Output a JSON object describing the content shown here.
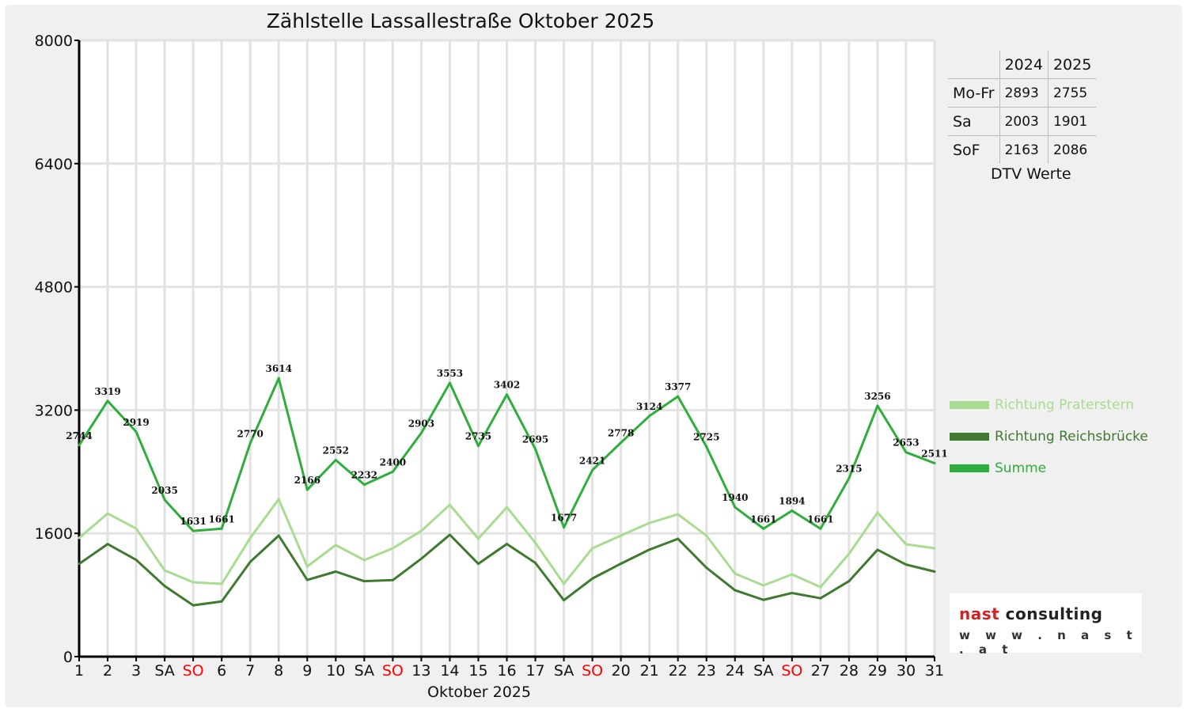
{
  "chart_data": {
    "type": "line",
    "title": "Zählstelle Lassallestraße Oktober 2025",
    "xlabel": "Oktober 2025",
    "ylabel": "",
    "ylim": [
      0,
      8000
    ],
    "yticks": [
      "0",
      "1600",
      "3200",
      "4800",
      "6400",
      "8000"
    ],
    "ytick_values": [
      0,
      1600,
      3200,
      4800,
      6400,
      8000
    ],
    "grid": true,
    "legend_placement": "right",
    "categories": [
      "1",
      "2",
      "3",
      "SA",
      "SO",
      "6",
      "7",
      "8",
      "9",
      "10",
      "SA",
      "SO",
      "13",
      "14",
      "15",
      "16",
      "17",
      "SA",
      "SO",
      "20",
      "21",
      "22",
      "23",
      "24",
      "SA",
      "SO",
      "27",
      "28",
      "29",
      "30",
      "31"
    ],
    "series": [
      {
        "name": "Richtung Praterstern",
        "color": "#a8dc90",
        "values": [
          1540,
          1858,
          1663,
          1119,
          965,
          945,
          1540,
          2043,
          1170,
          1448,
          1253,
          1407,
          1632,
          1971,
          1530,
          1940,
          1478,
          945,
          1407,
          1571,
          1735,
          1848,
          1571,
          1078,
          924,
          1068,
          903,
          1335,
          1869,
          1458,
          1407
        ]
      },
      {
        "name": "Richtung Reichsbrücke",
        "color": "#3f7a30",
        "values": [
          1204,
          1461,
          1256,
          916,
          666,
          716,
          1230,
          1571,
          996,
          1104,
          979,
          993,
          1271,
          1582,
          1205,
          1462,
          1217,
          732,
          1014,
          1207,
          1389,
          1529,
          1154,
          862,
          737,
          826,
          758,
          980,
          1387,
          1195,
          1104
        ]
      },
      {
        "name": "Summe",
        "color": "#2eae3a",
        "values": [
          2744,
          3319,
          2919,
          2035,
          1631,
          1661,
          2770,
          3614,
          2166,
          2552,
          2232,
          2400,
          2903,
          3553,
          2735,
          3402,
          2695,
          1677,
          2421,
          2778,
          3124,
          3377,
          2725,
          1940,
          1661,
          1894,
          1661,
          2315,
          3256,
          2653,
          2511
        ],
        "labels": true
      }
    ],
    "sunday_color": "#ff0000"
  },
  "dtv": {
    "caption": "DTV Werte",
    "header": [
      "",
      "2024",
      "2025"
    ],
    "rows": [
      [
        "Mo-Fr",
        "2893",
        "2755"
      ],
      [
        "Sa",
        "2003",
        "1901"
      ],
      [
        "SoF",
        "2163",
        "2086"
      ]
    ]
  },
  "logo": {
    "brand_red": "nast",
    "brand_dark": " consulting",
    "url": "w w w . n a s t . a t"
  }
}
